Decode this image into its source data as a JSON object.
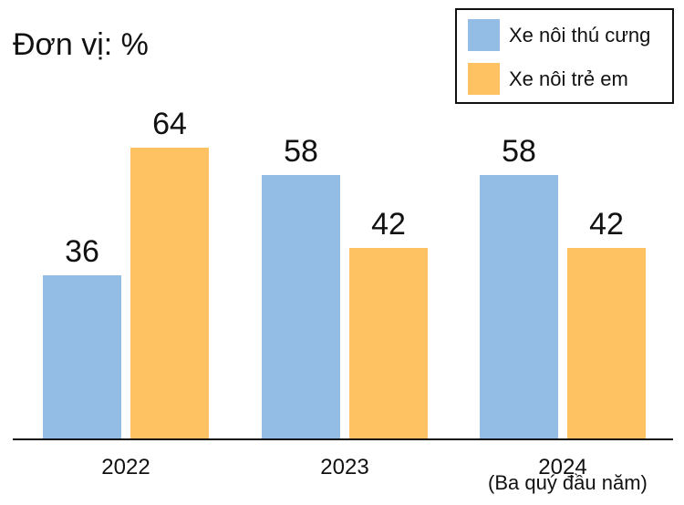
{
  "unit_label": "Đơn vị: %",
  "colors": {
    "pet": "#93bde4",
    "baby": "#fec262"
  },
  "chart_data": {
    "type": "bar",
    "categories": [
      "2022",
      "2023",
      "2024"
    ],
    "category_notes": [
      "",
      "",
      "(Ba quý đầu năm)"
    ],
    "series": [
      {
        "name": "Xe nôi thú cưng",
        "values": [
          36,
          58,
          58
        ]
      },
      {
        "name": "Xe nôi trẻ em",
        "values": [
          64,
          42,
          42
        ]
      }
    ],
    "ylim": [
      0,
      100
    ],
    "legend": "top-right",
    "grid": false
  }
}
